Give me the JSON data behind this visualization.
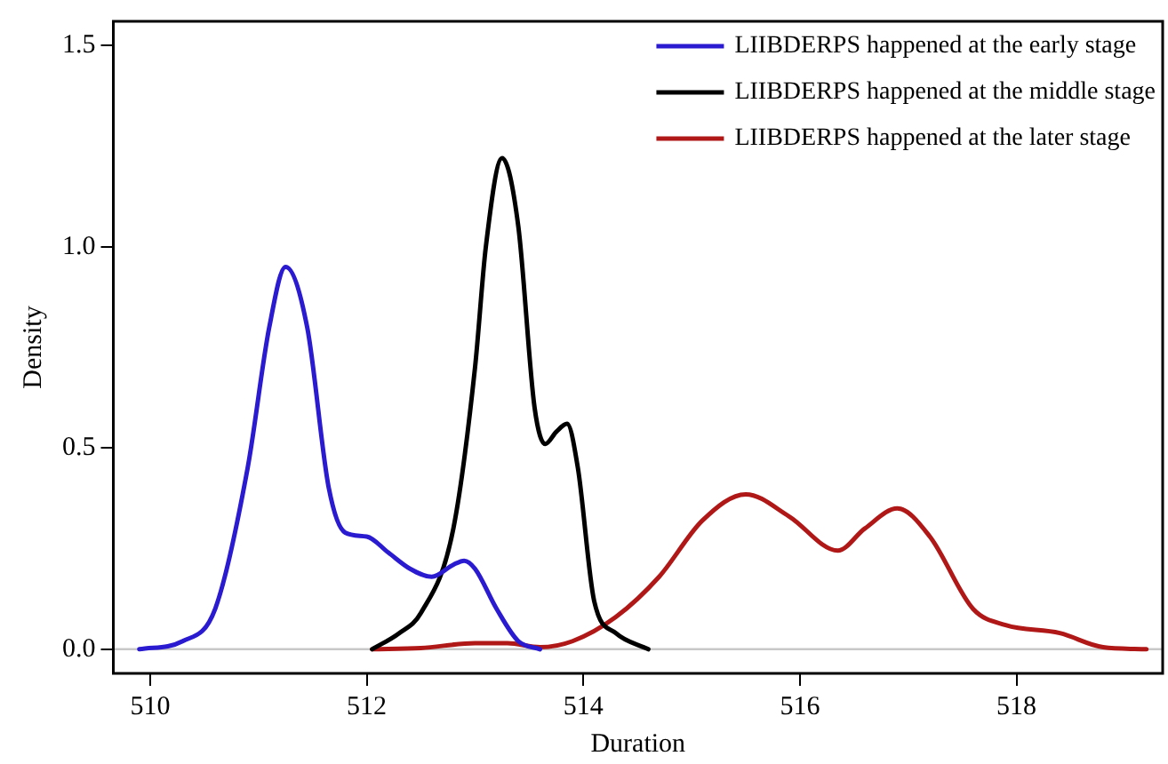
{
  "chart_data": {
    "type": "line",
    "xlabel": "Duration",
    "ylabel": "Density",
    "xlim": [
      509.66,
      519.35
    ],
    "xticks": [
      510,
      512,
      514,
      516,
      518
    ],
    "ylim": [
      -0.06,
      1.56
    ],
    "yticks": [
      {
        "value": 0,
        "label": "0.0"
      },
      0.5,
      {
        "value": 1,
        "label": "1.0"
      },
      1.5
    ],
    "grid": false,
    "legend": "top right",
    "marker": "none",
    "line_style": "solid",
    "ref_lines": [
      {
        "axis": "y",
        "value": 0,
        "color": "#c8c8c8"
      }
    ],
    "series": [
      {
        "name": "LIIBDERPS happened at the early stage",
        "color": "#2a1ad0",
        "x": [
          509.9,
          510.3,
          510.6,
          510.9,
          511.1,
          511.25,
          511.45,
          511.65,
          511.8,
          512.0,
          512.2,
          512.4,
          512.6,
          512.8,
          512.9,
          513.0,
          513.2,
          513.4,
          513.6
        ],
        "values": [
          0,
          0.02,
          0.1,
          0.45,
          0.8,
          0.95,
          0.8,
          0.4,
          0.29,
          0.28,
          0.24,
          0.2,
          0.18,
          0.21,
          0.22,
          0.2,
          0.1,
          0.02,
          0
        ]
      },
      {
        "name": "LIIBDERPS happened at the middle stage",
        "color": "#000000",
        "x": [
          512.05,
          512.3,
          512.5,
          512.8,
          513.0,
          513.1,
          513.25,
          513.4,
          513.55,
          513.65,
          513.75,
          513.85,
          513.95,
          514.1,
          514.3,
          514.6
        ],
        "values": [
          0,
          0.04,
          0.09,
          0.3,
          0.7,
          1.0,
          1.22,
          1.05,
          0.6,
          0.51,
          0.54,
          0.56,
          0.45,
          0.12,
          0.04,
          0
        ]
      },
      {
        "name": "LIIBDERPS happened at the later stage",
        "color": "#b01818",
        "x": [
          512.05,
          512.5,
          513.0,
          513.3,
          513.6,
          513.9,
          514.3,
          514.7,
          515.1,
          515.5,
          515.9,
          516.35,
          516.6,
          516.9,
          517.2,
          517.6,
          517.9,
          518.4,
          518.8,
          519.2
        ],
        "values": [
          0,
          0.003,
          0.015,
          0.015,
          0.005,
          0.02,
          0.08,
          0.18,
          0.32,
          0.385,
          0.33,
          0.245,
          0.3,
          0.35,
          0.28,
          0.1,
          0.06,
          0.04,
          0.005,
          0
        ]
      }
    ]
  }
}
